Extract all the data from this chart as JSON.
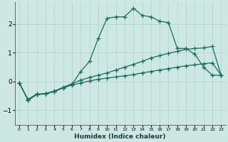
{
  "xlabel": "Humidex (Indice chaleur)",
  "background_color": "#cde8e2",
  "grid_color": "#aed0ca",
  "line_color": "#1a6b5e",
  "xlim": [
    -0.5,
    23.5
  ],
  "ylim": [
    -1.5,
    2.75
  ],
  "x_ticks": [
    0,
    1,
    2,
    3,
    4,
    5,
    6,
    7,
    8,
    9,
    10,
    11,
    12,
    13,
    14,
    15,
    16,
    17,
    18,
    19,
    20,
    21,
    22,
    23
  ],
  "y_ticks": [
    -1,
    0,
    1,
    2
  ],
  "curveB_x": [
    0,
    1,
    2,
    3,
    4,
    5,
    6,
    7,
    8,
    9,
    10,
    11,
    12,
    13,
    14,
    15,
    16,
    17,
    18,
    19,
    20,
    21,
    22,
    23
  ],
  "curveB_y": [
    -0.05,
    -0.65,
    -0.45,
    -0.42,
    -0.34,
    -0.22,
    -0.1,
    0.35,
    0.7,
    1.5,
    2.2,
    2.25,
    2.25,
    2.55,
    2.3,
    2.25,
    2.1,
    2.05,
    1.15,
    1.15,
    0.95,
    0.5,
    0.22,
    0.22
  ],
  "curveA_x": [
    0,
    1,
    2,
    3,
    4,
    5,
    6,
    7,
    8,
    9,
    10,
    11,
    12,
    13,
    14,
    15,
    16,
    17,
    18,
    19,
    20,
    21,
    22,
    23
  ],
  "curveA_y": [
    -0.05,
    -0.65,
    -0.45,
    -0.43,
    -0.35,
    -0.22,
    -0.12,
    -0.05,
    0.02,
    0.08,
    0.12,
    0.16,
    0.2,
    0.24,
    0.3,
    0.35,
    0.4,
    0.45,
    0.5,
    0.55,
    0.58,
    0.62,
    0.65,
    0.22
  ],
  "curveC_x": [
    0,
    1,
    2,
    3,
    4,
    5,
    6,
    7,
    8,
    9,
    10,
    11,
    12,
    13,
    14,
    15,
    16,
    17,
    18,
    19,
    20,
    21,
    22,
    23
  ],
  "curveC_y": [
    -0.05,
    -0.62,
    -0.43,
    -0.42,
    -0.33,
    -0.2,
    -0.08,
    0.05,
    0.14,
    0.22,
    0.3,
    0.4,
    0.5,
    0.6,
    0.7,
    0.82,
    0.9,
    0.98,
    1.05,
    1.12,
    1.15,
    1.17,
    1.22,
    0.22
  ]
}
